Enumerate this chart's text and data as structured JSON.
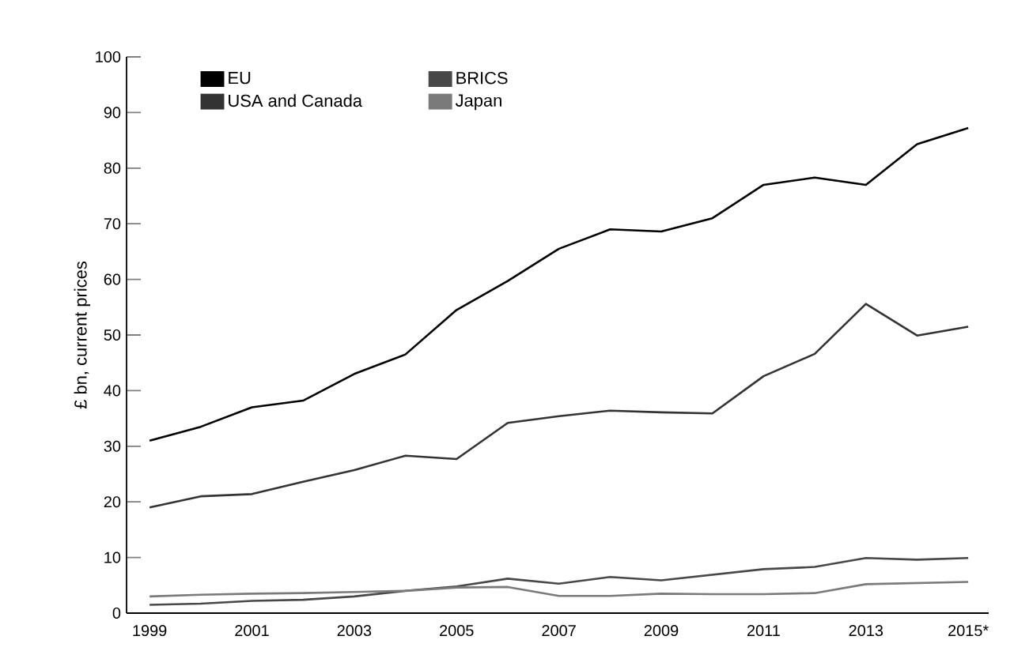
{
  "chart_data": {
    "type": "line",
    "ylabel": "£ bn, current prices",
    "categories": [
      "1999",
      null,
      "2001",
      null,
      "2003",
      null,
      "2005",
      null,
      "2007",
      null,
      "2009",
      null,
      "2011",
      null,
      "2013",
      null,
      "2015*"
    ],
    "series": [
      {
        "name": "EU",
        "color": "#000000",
        "values": [
          31,
          33.5,
          37,
          38.2,
          43,
          46.5,
          54.5,
          59.7,
          65.5,
          69,
          68.6,
          71,
          77,
          78.3,
          77,
          84.3,
          87.2
        ]
      },
      {
        "name": "USA and Canada",
        "color": "#333333",
        "values": [
          19,
          21,
          21.4,
          23.6,
          25.7,
          28.3,
          27.7,
          34.2,
          35.4,
          36.4,
          36.1,
          35.9,
          42.6,
          46.6,
          55.6,
          49.9,
          51.5
        ]
      },
      {
        "name": "BRICS",
        "color": "#484848",
        "values": [
          1.5,
          1.7,
          2.2,
          2.4,
          3,
          4,
          4.8,
          6.2,
          5.3,
          6.5,
          5.9,
          6.9,
          7.9,
          8.3,
          9.9,
          9.6,
          9.9
        ]
      },
      {
        "name": "Japan",
        "color": "#7a7a7a",
        "values": [
          3,
          3.3,
          3.5,
          3.6,
          3.8,
          4,
          4.6,
          4.7,
          3.1,
          3.1,
          3.5,
          3.4,
          3.4,
          3.6,
          5.2,
          5.4,
          5.6
        ]
      }
    ],
    "ylim": [
      0,
      100
    ],
    "yticks": [
      0,
      10,
      20,
      30,
      40,
      50,
      60,
      70,
      80,
      90,
      100
    ],
    "legend": "top left",
    "grid": false,
    "marker": "none",
    "line_style": "solid"
  }
}
